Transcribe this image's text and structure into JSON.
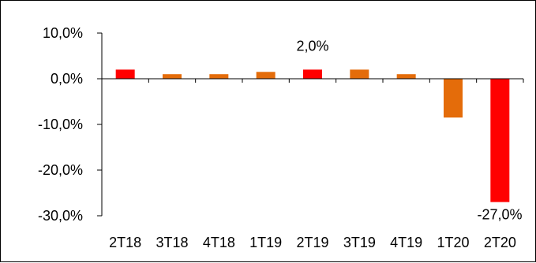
{
  "colors": {
    "highlight": "#ff0000",
    "regular": "#e46c0a",
    "axis": "#000000"
  },
  "chart_data": {
    "type": "bar",
    "title": "",
    "xlabel": "",
    "ylabel": "",
    "categories": [
      "2T18",
      "3T18",
      "4T18",
      "1T19",
      "2T19",
      "3T19",
      "4T19",
      "1T20",
      "2T20"
    ],
    "values": [
      2.0,
      1.0,
      1.0,
      1.5,
      2.0,
      2.0,
      1.0,
      -8.5,
      -27.0
    ],
    "bar_colors": [
      "highlight",
      "regular",
      "regular",
      "regular",
      "highlight",
      "regular",
      "regular",
      "regular",
      "highlight"
    ],
    "ylim": [
      -30,
      10
    ],
    "yticks": [
      10,
      0,
      -10,
      -20,
      -30
    ],
    "ytick_labels": [
      "10,0%",
      "0,0%",
      "-10,0%",
      "-20,0%",
      "-30,0%"
    ],
    "data_labels": [
      {
        "index": 4,
        "text": "2,0%"
      },
      {
        "index": 8,
        "text": "-27,0%"
      }
    ],
    "grid": false,
    "legend": "none"
  }
}
